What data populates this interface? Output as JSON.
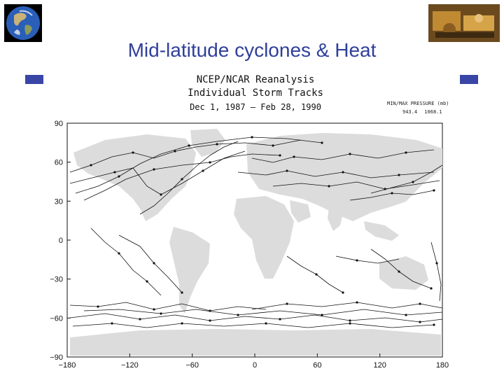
{
  "slide": {
    "title": "Mid-latitude cyclones & Heat"
  },
  "figure": {
    "title_line1": "NCEP/NCAR Reanalysis",
    "title_line2": "Individual Storm Tracks",
    "date_range": "Dec  1, 1987 – Feb 28, 1990",
    "legend_label": "MIN/MAX PRESSURE (mb)",
    "pressure_min": "943.4",
    "pressure_max": "1068.1"
  },
  "axes": {
    "x_ticks": [
      -180,
      -120,
      -60,
      0,
      60,
      120,
      180
    ],
    "y_ticks": [
      90,
      60,
      30,
      0,
      -30,
      -60,
      -90
    ],
    "x_ticks_label": [
      "−180",
      "−120",
      "−60",
      "0",
      "60",
      "120",
      "180"
    ],
    "y_ticks_label": [
      "90",
      "60",
      "30",
      "0",
      "−30",
      "−60",
      "−90"
    ]
  },
  "colors": {
    "land": "#dcdcdc",
    "tracks": "#111111",
    "title": "#2f3f9b",
    "accent": "#3a46a6"
  },
  "icons": [
    "earth-globe-icon",
    "instrument-photo-icon"
  ]
}
